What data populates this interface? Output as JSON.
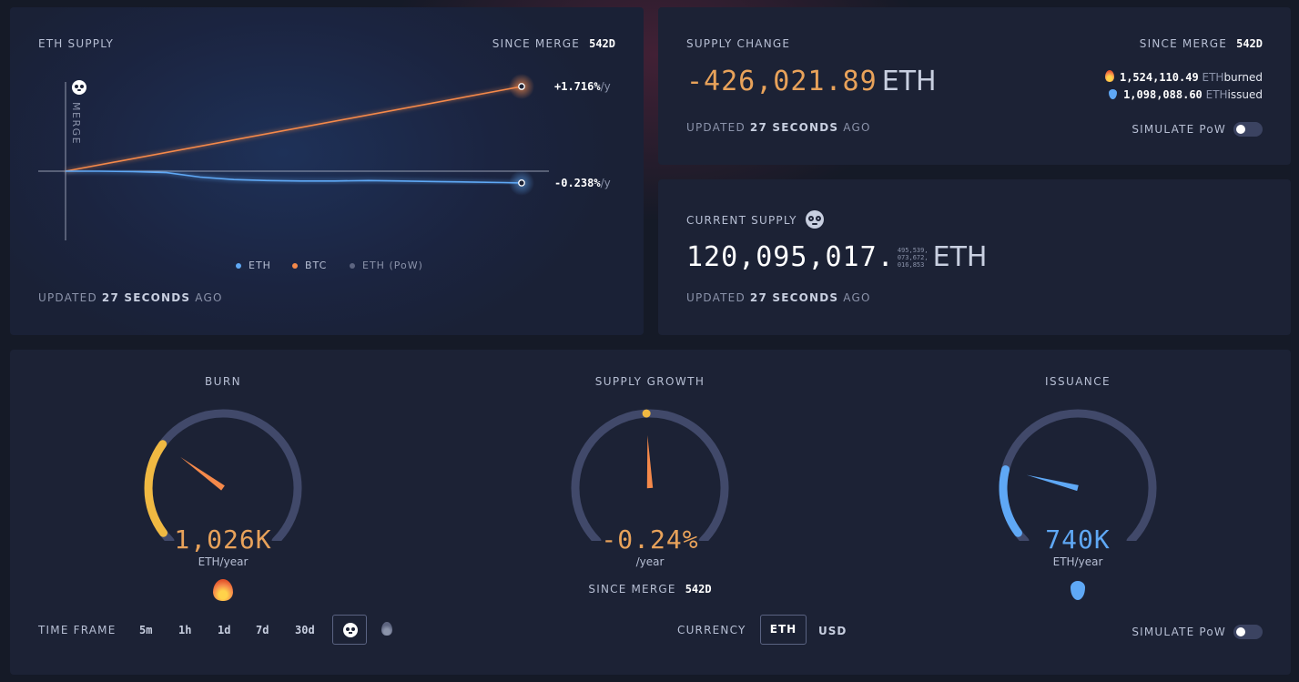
{
  "supply_card": {
    "title": "ETH SUPPLY",
    "since_label": "SINCE MERGE",
    "since_value": "542d",
    "merge_label": "MERGE",
    "btc_rate_value": "+1.716%",
    "btc_rate_unit": "/y",
    "eth_rate_value": "-0.238%",
    "eth_rate_unit": "/y",
    "legend": [
      {
        "label": "ETH",
        "color": "#5fa8f5"
      },
      {
        "label": "BTC",
        "color": "#f5894a"
      },
      {
        "label": "ETH (PoW)",
        "color": "#5d6580"
      }
    ],
    "updated_prefix": "UPDATED",
    "updated_value": "27 SECONDS",
    "updated_suffix": "AGO"
  },
  "chart_data": {
    "type": "line",
    "title": "ETH SUPPLY",
    "series": [
      {
        "name": "BTC",
        "x": [
          0,
          542
        ],
        "values": [
          0,
          1.716
        ],
        "color": "#f5894a"
      },
      {
        "name": "ETH",
        "x": [
          0,
          40,
          80,
          120,
          160,
          200,
          240,
          280,
          320,
          360,
          400,
          440,
          480,
          520,
          542
        ],
        "values": [
          0,
          0.0,
          -0.01,
          -0.03,
          -0.12,
          -0.17,
          -0.19,
          -0.2,
          -0.2,
          -0.19,
          -0.2,
          -0.21,
          -0.22,
          -0.23,
          -0.238
        ],
        "color": "#5fa8f5"
      }
    ],
    "annotations": [
      "+1.716%/y",
      "-0.238%/y",
      "MERGE"
    ],
    "grid": false,
    "legend": "bottom"
  },
  "change_card": {
    "title": "SUPPLY CHANGE",
    "since_label": "SINCE MERGE",
    "since_value": "542d",
    "value": "-426,021.89",
    "unit": "ETH",
    "burned_value": "1,524,110.49",
    "burned_unit": "ETH",
    "burned_label": "burned",
    "issued_value": "1,098,088.60",
    "issued_unit": "ETH",
    "issued_label": "issued",
    "updated_prefix": "UPDATED",
    "updated_value": "27 SECONDS",
    "updated_suffix": "AGO",
    "simulate_label": "SIMULATE PoW"
  },
  "current_card": {
    "title": "CURRENT SUPPLY",
    "value_main": "120,095,017.",
    "value_fraction_1": "495,539,",
    "value_fraction_2": "073,672,",
    "value_fraction_3": "016,853",
    "unit": "ETH",
    "updated_prefix": "UPDATED",
    "updated_value": "27 SECONDS",
    "updated_suffix": "AGO"
  },
  "gauges": {
    "burn": {
      "title": "BURN",
      "value": "1,026K",
      "unit": "ETH/year",
      "level": 0.3,
      "color": "#f0b942"
    },
    "growth": {
      "title": "SUPPLY GROWTH",
      "value": "-0.24%",
      "unit": "/year",
      "since_label": "SINCE MERGE",
      "since_value": "542d",
      "level": 0.49,
      "color": "#f5894a"
    },
    "issuance": {
      "title": "ISSUANCE",
      "value": "740K",
      "unit": "ETH/year",
      "level": 0.22,
      "color": "#5fa8f5"
    }
  },
  "controls": {
    "timeframe_label": "TIME FRAME",
    "timeframes": [
      "5m",
      "1h",
      "1d",
      "7d",
      "30d"
    ],
    "currency_label": "CURRENCY",
    "currency_options": [
      "ETH",
      "USD"
    ],
    "selected_currency": "ETH",
    "simulate_label": "SIMULATE PoW"
  }
}
